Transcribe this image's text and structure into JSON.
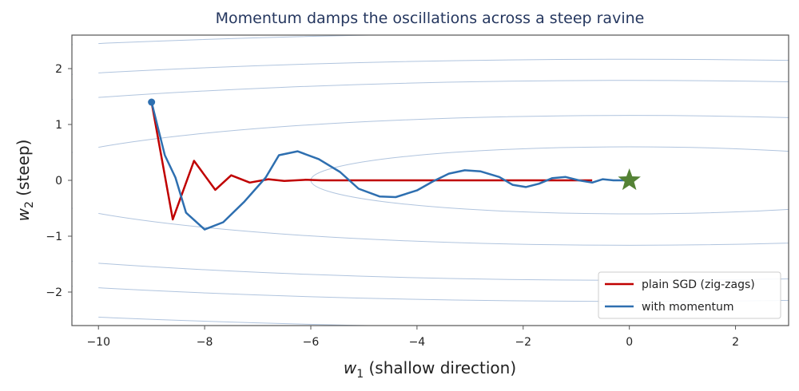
{
  "chart_data": {
    "type": "line",
    "title": "Momentum damps the oscillations across a steep ravine",
    "xlabel_var": "w",
    "xlabel_sub": "1",
    "xlabel_rest": " (shallow direction)",
    "ylabel_var": "w",
    "ylabel_sub": "2",
    "ylabel_rest": " (steep)",
    "xlim": [
      -10.5,
      3.0
    ],
    "ylim": [
      -2.6,
      2.6
    ],
    "xticks": [
      -10,
      -8,
      -6,
      -4,
      -2,
      0,
      2
    ],
    "yticks": [
      -2,
      -1,
      0,
      1,
      2
    ],
    "xtick_labels": [
      "−10",
      "−8",
      "−6",
      "−4",
      "−2",
      "0",
      "2"
    ],
    "ytick_labels": [
      "−2",
      "−1",
      "0",
      "1",
      "2"
    ],
    "contours": {
      "a": 0.01,
      "b": 1.0,
      "levels": [
        0.36,
        1.35,
        3.2,
        4.7,
        7.0
      ],
      "color": "#b0c4de"
    },
    "minimum": {
      "x": 0,
      "y": 0,
      "color": "#548235"
    },
    "start": {
      "x": -9.0,
      "y": 1.4
    },
    "legend_position": "lower-right",
    "series": [
      {
        "name": "plain SGD (zig-zags)",
        "color": "#c00000",
        "points": [
          [
            -9.0,
            1.4
          ],
          [
            -8.6,
            -0.7
          ],
          [
            -8.2,
            0.35
          ],
          [
            -7.8,
            -0.17
          ],
          [
            -7.5,
            0.09
          ],
          [
            -7.15,
            -0.04
          ],
          [
            -6.8,
            0.02
          ],
          [
            -6.5,
            -0.01
          ],
          [
            -6.1,
            0.01
          ],
          [
            -5.8,
            0.0
          ],
          [
            -5.0,
            0.0
          ],
          [
            -4.0,
            0.0
          ],
          [
            -3.0,
            0.0
          ],
          [
            -2.0,
            0.0
          ],
          [
            -1.0,
            0.0
          ],
          [
            -0.7,
            0.0
          ]
        ]
      },
      {
        "name": "with momentum",
        "color": "#2e6fb0",
        "points": [
          [
            -9.0,
            1.4
          ],
          [
            -8.75,
            0.45
          ],
          [
            -8.55,
            0.05
          ],
          [
            -8.35,
            -0.58
          ],
          [
            -8.0,
            -0.88
          ],
          [
            -7.65,
            -0.75
          ],
          [
            -7.25,
            -0.38
          ],
          [
            -6.85,
            0.05
          ],
          [
            -6.6,
            0.45
          ],
          [
            -6.25,
            0.52
          ],
          [
            -5.85,
            0.38
          ],
          [
            -5.45,
            0.15
          ],
          [
            -5.1,
            -0.15
          ],
          [
            -4.7,
            -0.29
          ],
          [
            -4.4,
            -0.3
          ],
          [
            -4.0,
            -0.18
          ],
          [
            -3.7,
            -0.02
          ],
          [
            -3.4,
            0.12
          ],
          [
            -3.1,
            0.18
          ],
          [
            -2.8,
            0.16
          ],
          [
            -2.45,
            0.06
          ],
          [
            -2.2,
            -0.08
          ],
          [
            -1.95,
            -0.12
          ],
          [
            -1.7,
            -0.06
          ],
          [
            -1.45,
            0.04
          ],
          [
            -1.2,
            0.06
          ],
          [
            -0.95,
            0.0
          ],
          [
            -0.7,
            -0.04
          ],
          [
            -0.5,
            0.02
          ],
          [
            -0.3,
            0.0
          ],
          [
            -0.1,
            0.0
          ],
          [
            0.0,
            0.0
          ]
        ]
      }
    ]
  }
}
